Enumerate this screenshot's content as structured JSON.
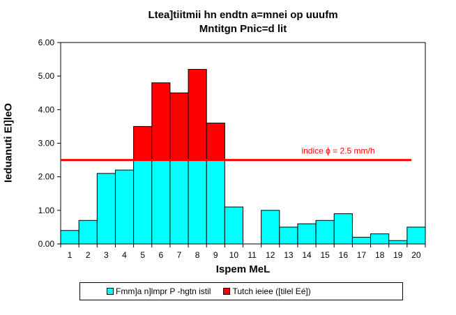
{
  "chart_data": {
    "type": "bar",
    "title": "Ltea]tiitmii hn endtn a=mnei op uuufm",
    "subtitle": "Mntitgn Pnic=d lit",
    "xlabel": "Ispem MeL",
    "ylabel": "Ieduanuti EI]leO",
    "categories": [
      "1",
      "2",
      "3",
      "4",
      "5",
      "6",
      "7",
      "8",
      "9",
      "10",
      "11",
      "12",
      "13",
      "14",
      "15",
      "16",
      "17",
      "18",
      "19",
      "20"
    ],
    "values": [
      0.4,
      0.7,
      2.1,
      2.2,
      3.5,
      4.8,
      4.5,
      5.2,
      3.6,
      1.1,
      0.0,
      1.0,
      0.5,
      0.6,
      0.7,
      0.9,
      0.2,
      0.3,
      0.1,
      0.5
    ],
    "threshold": 2.5,
    "threshold_label": "indice ϕ = 2.5 mm/h",
    "ylim": [
      0,
      6
    ],
    "yticks": [
      "0.00",
      "1.00",
      "2.00",
      "3.00",
      "4.00",
      "5.00",
      "6.00"
    ],
    "grid": false,
    "legend": {
      "position": "bottom",
      "entries": [
        {
          "name": "Fmm]a n]lmpr P -hgtn istil",
          "color": "#00ffff"
        },
        {
          "name": "Tutch ieiee ([tilel Eé])",
          "color": "#ff0000"
        }
      ]
    },
    "colors": {
      "below": "#00ffff",
      "above": "#ff0000",
      "threshold_line": "#ff0000",
      "plot_background": "#ffffff"
    }
  }
}
